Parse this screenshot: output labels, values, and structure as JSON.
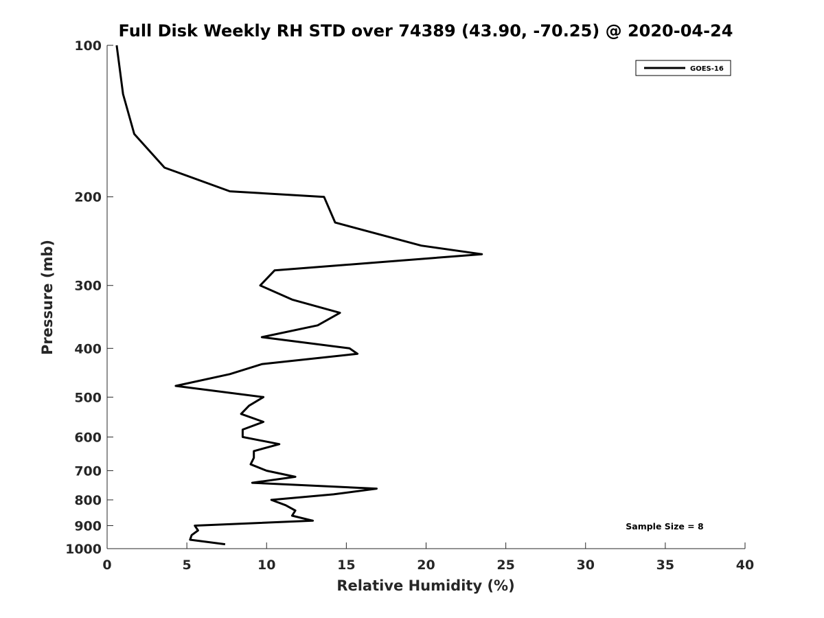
{
  "chart_data": {
    "type": "line",
    "title": "Full Disk Weekly RH STD over 74389 (43.90, -70.25) @ 2020-04-24",
    "xlabel": "Relative Humidity (%)",
    "ylabel": "Pressure (mb)",
    "xlim": [
      0,
      40
    ],
    "ylim": [
      100,
      1000
    ],
    "yscale": "log",
    "yreversed": true,
    "xticks": [
      0,
      5,
      10,
      15,
      20,
      25,
      30,
      35,
      40
    ],
    "yticks": [
      100,
      200,
      300,
      400,
      500,
      600,
      700,
      800,
      900,
      1000
    ],
    "grid": false,
    "legend_position": "top-right",
    "annotation": "Sample Size = 8",
    "series": [
      {
        "name": "GOES-16",
        "color": "#000000",
        "points": [
          [
            0.6,
            100
          ],
          [
            1.0,
            125
          ],
          [
            1.7,
            150
          ],
          [
            3.6,
            175
          ],
          [
            7.7,
            195
          ],
          [
            13.6,
            200
          ],
          [
            14.3,
            225
          ],
          [
            19.7,
            250
          ],
          [
            23.5,
            260
          ],
          [
            10.5,
            280
          ],
          [
            9.6,
            300
          ],
          [
            11.6,
            320
          ],
          [
            14.6,
            340
          ],
          [
            13.2,
            360
          ],
          [
            9.7,
            380
          ],
          [
            15.2,
            400
          ],
          [
            15.7,
            410
          ],
          [
            9.7,
            430
          ],
          [
            7.7,
            450
          ],
          [
            4.3,
            475
          ],
          [
            9.8,
            500
          ],
          [
            8.9,
            520
          ],
          [
            8.4,
            540
          ],
          [
            9.8,
            560
          ],
          [
            8.5,
            580
          ],
          [
            8.5,
            600
          ],
          [
            10.8,
            620
          ],
          [
            9.2,
            640
          ],
          [
            9.2,
            660
          ],
          [
            9.0,
            680
          ],
          [
            10.0,
            700
          ],
          [
            11.8,
            720
          ],
          [
            9.1,
            740
          ],
          [
            16.9,
            760
          ],
          [
            14.2,
            780
          ],
          [
            10.3,
            800
          ],
          [
            11.2,
            820
          ],
          [
            11.8,
            840
          ],
          [
            11.6,
            860
          ],
          [
            12.9,
            880
          ],
          [
            5.5,
            900
          ],
          [
            5.7,
            920
          ],
          [
            5.3,
            940
          ],
          [
            5.2,
            960
          ],
          [
            7.4,
            980
          ]
        ]
      }
    ]
  }
}
